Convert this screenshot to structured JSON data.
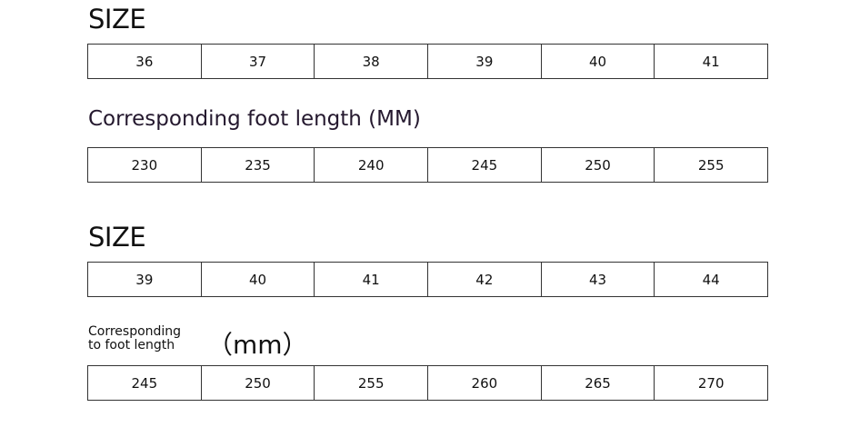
{
  "section1": {
    "size_title": "SIZE",
    "sizes": [
      "36",
      "37",
      "38",
      "39",
      "40",
      "41"
    ],
    "length_title": "Corresponding foot length (MM)",
    "lengths": [
      "230",
      "235",
      "240",
      "245",
      "250",
      "255"
    ]
  },
  "section2": {
    "size_title": "SIZE",
    "sizes": [
      "39",
      "40",
      "41",
      "42",
      "43",
      "44"
    ],
    "length_title_line1": "Corresponding",
    "length_title_line2": "to foot length",
    "unit": "（mm）",
    "lengths": [
      "245",
      "250",
      "255",
      "260",
      "265",
      "270"
    ]
  }
}
